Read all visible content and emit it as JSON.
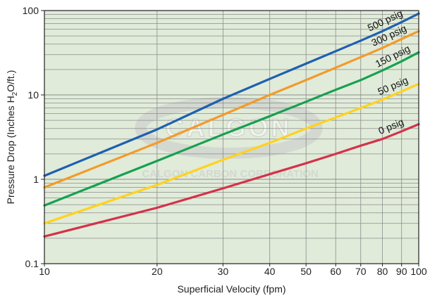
{
  "chart_data": {
    "type": "line",
    "title": "",
    "xlabel": "Superficial Velocity (fpm)",
    "ylabel": "Pressure Drop (Inches H2O/ft.)",
    "ylabel_parts": {
      "before": "Pressure Drop (Inches H",
      "sub": "2",
      "after": "O/ft.)"
    },
    "x_scale": "log",
    "y_scale": "log",
    "xlim": [
      10,
      100
    ],
    "ylim": [
      0.1,
      100
    ],
    "grid": true,
    "x_tick_labels": [
      "10",
      "20",
      "30",
      "40",
      "50",
      "60",
      "70",
      "80",
      "90",
      "100"
    ],
    "x_tick_values": [
      10,
      20,
      30,
      40,
      50,
      60,
      70,
      80,
      90,
      100
    ],
    "y_tick_labels": [
      "0.1",
      "1",
      "10",
      "100"
    ],
    "y_tick_values": [
      0.1,
      1,
      10,
      100
    ],
    "series": [
      {
        "name": "500 psig",
        "color": "#1f5fb0",
        "x": [
          10,
          20,
          30,
          40,
          50,
          60,
          70,
          80,
          90,
          100
        ],
        "y": [
          1.1,
          3.9,
          9.0,
          15.5,
          23.5,
          33.0,
          44.0,
          57.0,
          73.0,
          92.0
        ]
      },
      {
        "name": "300 psig",
        "color": "#f39a2a",
        "x": [
          10,
          20,
          30,
          40,
          50,
          60,
          70,
          80,
          90,
          100
        ],
        "y": [
          0.8,
          2.7,
          5.8,
          10.0,
          15.0,
          21.0,
          28.0,
          36.0,
          46.0,
          57.0
        ]
      },
      {
        "name": "150 psig",
        "color": "#17a050",
        "x": [
          10,
          20,
          30,
          40,
          50,
          60,
          70,
          80,
          90,
          100
        ],
        "y": [
          0.49,
          1.65,
          3.4,
          5.6,
          8.3,
          11.5,
          15.0,
          19.5,
          25.0,
          32.0
        ]
      },
      {
        "name": "50 psig",
        "color": "#ffd21f",
        "x": [
          10,
          20,
          30,
          40,
          50,
          60,
          70,
          80,
          90,
          100
        ],
        "y": [
          0.3,
          0.86,
          1.7,
          2.7,
          4.0,
          5.4,
          7.0,
          8.8,
          11.0,
          13.5
        ]
      },
      {
        "name": "0 psig",
        "color": "#d4324a",
        "x": [
          10,
          20,
          30,
          40,
          50,
          60,
          70,
          80,
          90,
          100
        ],
        "y": [
          0.21,
          0.46,
          0.78,
          1.15,
          1.55,
          2.0,
          2.5,
          3.0,
          3.7,
          4.5
        ]
      }
    ],
    "series_label_order": [
      "500 psig",
      "300 psig",
      "150 psig",
      "50 psig",
      "0 psig"
    ],
    "watermark": {
      "logo": "CALGON",
      "company": "CALGON CARBON CORPORATION"
    }
  },
  "colors": {
    "plot_background": "#e0ebd9",
    "grid_line": "#8c8c8c",
    "frame": "#222222",
    "watermark": "#c9c9c9"
  }
}
